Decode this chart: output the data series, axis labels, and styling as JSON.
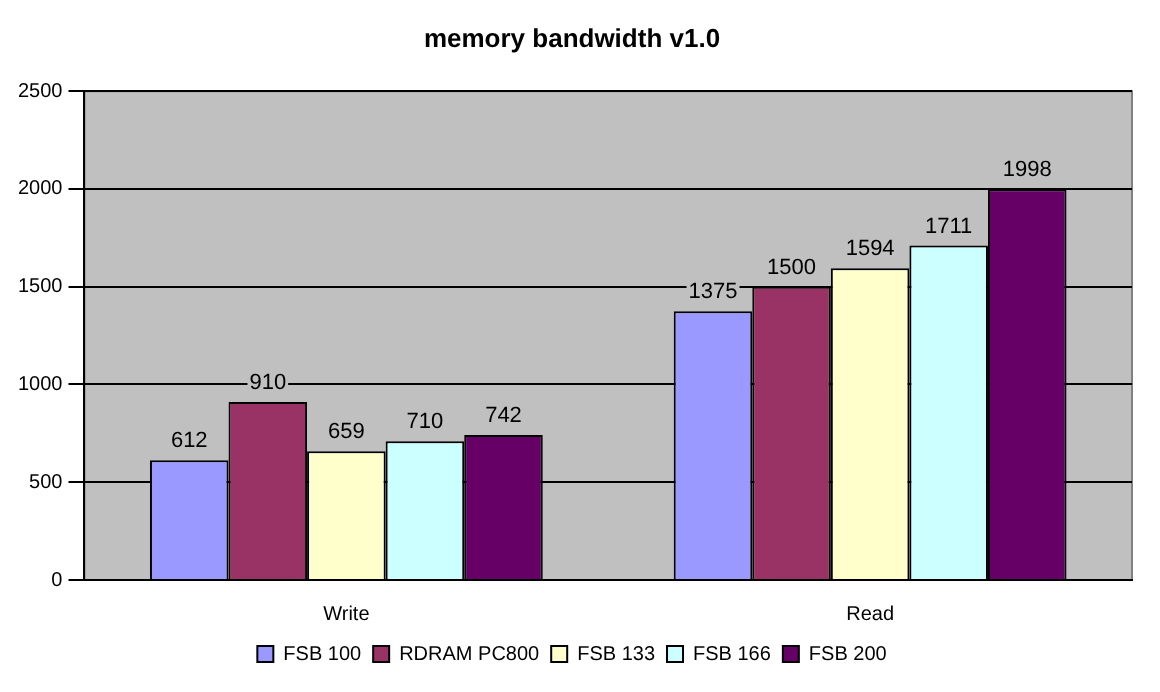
{
  "chart_data": {
    "type": "bar",
    "title": "memory bandwidth v1.0",
    "categories": [
      "Write",
      "Read"
    ],
    "series": [
      {
        "name": "FSB 100",
        "color": "#9999ff",
        "values": [
          612,
          1375
        ]
      },
      {
        "name": "RDRAM PC800",
        "color": "#993366",
        "values": [
          910,
          1500
        ]
      },
      {
        "name": "FSB 133",
        "color": "#ffffcc",
        "values": [
          659,
          1594
        ]
      },
      {
        "name": "FSB 166",
        "color": "#ccffff",
        "values": [
          710,
          1711
        ]
      },
      {
        "name": "FSB 200",
        "color": "#660066",
        "values": [
          742,
          1998
        ]
      }
    ],
    "ylim": [
      0,
      2500
    ],
    "yticks": [
      0,
      500,
      1000,
      1500,
      2000,
      2500
    ],
    "grid": "y",
    "legend": "bottom",
    "data_labels": true
  }
}
